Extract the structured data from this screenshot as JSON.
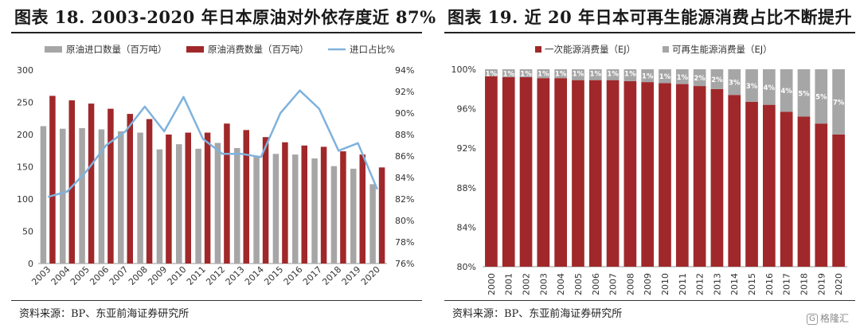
{
  "left": {
    "title": "图表 18. 2003-2020 年日本原油对外依存度近 87%",
    "source": "资料来源：BP、东亚前海证券研究所",
    "chart_data": {
      "type": "bar",
      "categories": [
        "2003",
        "2004",
        "2005",
        "2006",
        "2007",
        "2008",
        "2009",
        "2010",
        "2011",
        "2012",
        "2013",
        "2014",
        "2015",
        "2016",
        "2017",
        "2018",
        "2019",
        "2020"
      ],
      "series": [
        {
          "name": "原油进口数量（百万吨）",
          "type": "bar",
          "axis": "left",
          "color": "#a6a6a6",
          "values": [
            213,
            209,
            210,
            208,
            205,
            203,
            177,
            185,
            178,
            187,
            179,
            167,
            170,
            169,
            163,
            151,
            147,
            123
          ]
        },
        {
          "name": "原油消费数量（百万吨）",
          "type": "bar",
          "axis": "left",
          "color": "#a0282a",
          "values": [
            260,
            253,
            248,
            240,
            232,
            224,
            200,
            203,
            203,
            217,
            207,
            196,
            188,
            183,
            181,
            174,
            169,
            149
          ]
        },
        {
          "name": "进口占比%",
          "type": "line",
          "axis": "right",
          "color": "#7fb2dc",
          "values": [
            82.2,
            82.7,
            84.6,
            87.0,
            88.3,
            90.6,
            88.3,
            91.5,
            87.6,
            86.2,
            86.2,
            85.9,
            90.0,
            92.1,
            90.4,
            86.5,
            87.2,
            82.9
          ]
        }
      ],
      "ylim": [
        0,
        300
      ],
      "yticks": [
        "0",
        "50",
        "100",
        "150",
        "200",
        "250",
        "300"
      ],
      "y2lim": [
        76,
        94
      ],
      "y2ticks": [
        "76%",
        "78%",
        "80%",
        "82%",
        "84%",
        "86%",
        "88%",
        "90%",
        "92%",
        "94%"
      ],
      "grid": false,
      "legend": "top"
    }
  },
  "right": {
    "title": "图表 19. 近 20 年日本可再生能源消费占比不断提升",
    "source": "资料来源：BP、东亚前海证券研究所",
    "chart_data": {
      "type": "bar",
      "stacked": true,
      "categories": [
        "2000",
        "2001",
        "2002",
        "2003",
        "2004",
        "2005",
        "2006",
        "2007",
        "2008",
        "2009",
        "2010",
        "2011",
        "2012",
        "2013",
        "2014",
        "2015",
        "2016",
        "2017",
        "2018",
        "2019",
        "2020"
      ],
      "series": [
        {
          "name": "一次能源消费量（EJ）",
          "color": "#a0282a",
          "values": [
            99.3,
            99.2,
            99.2,
            99.1,
            99.1,
            98.9,
            98.9,
            98.9,
            98.8,
            98.7,
            98.6,
            98.5,
            98.3,
            98.0,
            97.4,
            96.7,
            96.4,
            95.7,
            95.2,
            94.5,
            93.4
          ]
        },
        {
          "name": "可再生能源消费量（EJ）",
          "color": "#a6a6a6",
          "values": [
            0.7,
            0.8,
            0.8,
            0.9,
            0.9,
            1.1,
            1.1,
            1.1,
            1.2,
            1.3,
            1.4,
            1.5,
            1.7,
            2.0,
            2.6,
            3.3,
            3.6,
            4.3,
            4.8,
            5.5,
            6.6
          ]
        }
      ],
      "labels": [
        "1%",
        "1%",
        "1%",
        "1%",
        "1%",
        "1%",
        "1%",
        "1%",
        "1%",
        "1%",
        "1%",
        "1%",
        "2%",
        "2%",
        "3%",
        "3%",
        "4%",
        "4%",
        "5%",
        "5%",
        "7%"
      ],
      "ylim": [
        80,
        100
      ],
      "yticks": [
        "80%",
        "84%",
        "88%",
        "92%",
        "96%",
        "100%"
      ],
      "grid": false,
      "legend": "top"
    }
  },
  "watermark": {
    "icon_text": "G",
    "text": "格隆汇"
  }
}
